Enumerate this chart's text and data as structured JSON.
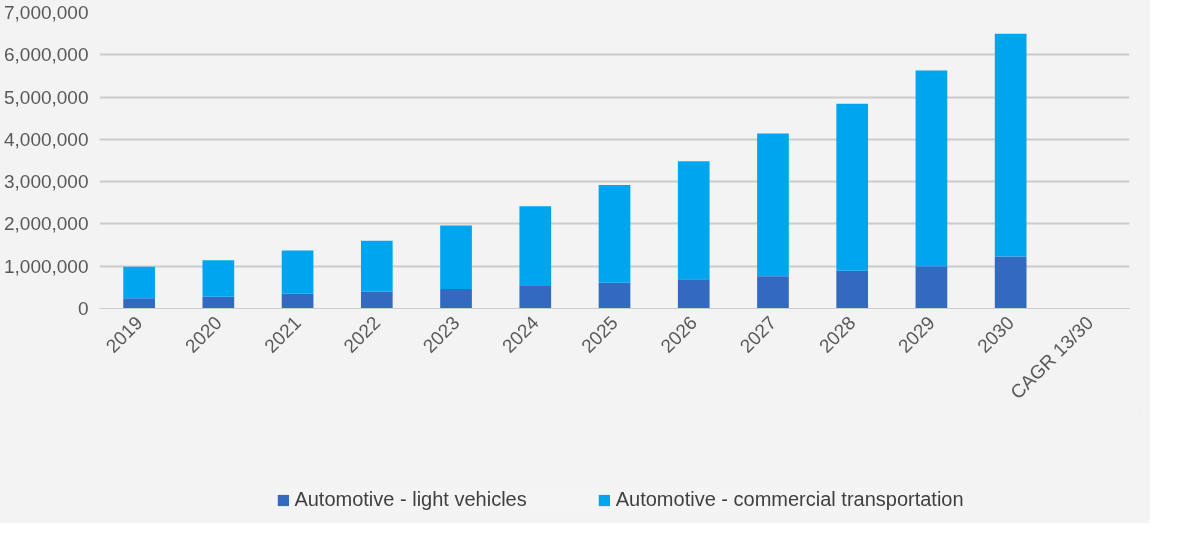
{
  "chart_data": {
    "type": "bar",
    "stacked": true,
    "categories": [
      "2019",
      "2020",
      "2021",
      "2022",
      "2023",
      "2024",
      "2025",
      "2026",
      "2027",
      "2028",
      "2029",
      "2030",
      "CAGR 13/30"
    ],
    "series": [
      {
        "name": "Automotive - light vehicles",
        "color": "#3469c0",
        "values": [
          240000,
          280000,
          350000,
          400000,
          460000,
          530000,
          610000,
          690000,
          760000,
          890000,
          1000000,
          1230000,
          null
        ]
      },
      {
        "name": "Automotive - commercial transportation",
        "color": "#00a5f0",
        "values": [
          750000,
          860000,
          1020000,
          1200000,
          1500000,
          1890000,
          2310000,
          2790000,
          3380000,
          3950000,
          4630000,
          5270000,
          null
        ]
      }
    ],
    "ylim": [
      0,
      7000000
    ],
    "yticks": [
      {
        "value": 0,
        "label": "0"
      },
      {
        "value": 1000000,
        "label": "1,000,000"
      },
      {
        "value": 2000000,
        "label": "2,000,000"
      },
      {
        "value": 3000000,
        "label": "3,000,000"
      },
      {
        "value": 4000000,
        "label": "4,000,000"
      },
      {
        "value": 5000000,
        "label": "5,000,000"
      },
      {
        "value": 6000000,
        "label": "6,000,000"
      },
      {
        "value": 7000000,
        "label": "7,000,000"
      }
    ],
    "grid": "y",
    "legend": "bottom"
  }
}
